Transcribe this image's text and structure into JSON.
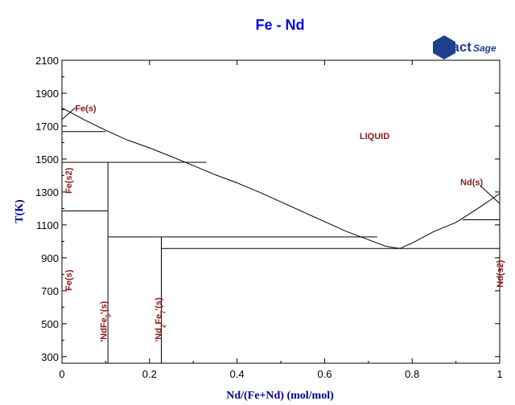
{
  "chart_data": {
    "type": "line",
    "title": "Fe - Nd",
    "xlabel": "Nd/(Fe+Nd) (mol/mol)",
    "ylabel": "T(K)",
    "xlim": [
      0,
      1
    ],
    "ylim": [
      260,
      2100
    ],
    "x_ticks": [
      0,
      0.2,
      0.4,
      0.6,
      0.8,
      1
    ],
    "x_tick_labels": [
      "0",
      "0.2",
      "0.4",
      "0.6",
      "0.8",
      "1"
    ],
    "y_ticks": [
      300,
      500,
      700,
      900,
      1100,
      1300,
      1500,
      1700,
      1900,
      2100
    ],
    "y_tick_labels": [
      "300",
      "500",
      "700",
      "900",
      "1100",
      "1300",
      "1500",
      "1700",
      "1900",
      "2100"
    ],
    "grid": false,
    "series": [
      {
        "role": "liquidus-fe-side",
        "x": [
          0,
          0.05,
          0.1,
          0.15,
          0.2,
          0.25,
          0.3,
          0.35,
          0.4,
          0.45,
          0.5,
          0.55,
          0.6,
          0.65,
          0.7,
          0.74,
          0.772
        ],
        "y": [
          1811,
          1740,
          1675,
          1615,
          1568,
          1515,
          1460,
          1405,
          1355,
          1300,
          1240,
          1180,
          1120,
          1060,
          1010,
          970,
          957
        ]
      },
      {
        "role": "liquidus-nd-side",
        "x": [
          0.772,
          0.8,
          0.85,
          0.9,
          0.95,
          1.0
        ],
        "y": [
          957,
          990,
          1060,
          1115,
          1200,
          1290
        ]
      },
      {
        "role": "fe-gamma-delta-boundary",
        "x": [
          0,
          0.0
        ],
        "y": [
          1667,
          1811
        ]
      },
      {
        "role": "fe-side-slope-upper",
        "x": [
          0,
          0.03
        ],
        "y": [
          1740,
          1811
        ]
      },
      {
        "role": "nd-side-slope",
        "x": [
          0.955,
          1.0
        ],
        "y": [
          1340,
          1230
        ]
      }
    ],
    "horizontal_lines": [
      {
        "y": 1667,
        "x": [
          0,
          0.1
        ]
      },
      {
        "y": 1480,
        "x": [
          0,
          0.33
        ]
      },
      {
        "y": 1185,
        "x": [
          0,
          0.105
        ]
      },
      {
        "y": 1027,
        "x": [
          0.105,
          0.72
        ]
      },
      {
        "y": 957,
        "x": [
          0.227,
          1.0
        ]
      },
      {
        "y": 1131,
        "x": [
          0.915,
          1.0
        ]
      }
    ],
    "vertical_lines": [
      {
        "x": 0.105,
        "y": [
          260,
          1480
        ]
      },
      {
        "x": 0.227,
        "y": [
          260,
          1027
        ]
      }
    ],
    "annotations": [
      {
        "text": "Fe(s)",
        "x": 0.03,
        "y": 1790,
        "rotate": 0,
        "color": "#8b1a1a"
      },
      {
        "text": "LIQUID",
        "x": 0.68,
        "y": 1622,
        "rotate": 0,
        "color": "#8b1a1a"
      },
      {
        "text": "Nd(s)",
        "x": 0.91,
        "y": 1340,
        "rotate": 0,
        "color": "#8b1a1a"
      },
      {
        "text": "Fe(s2)",
        "x": 0.0,
        "y": 1290,
        "rotate": -90,
        "color": "#8b1a1a"
      },
      {
        "text": "Fe(s)",
        "x": 0.0,
        "y": 700,
        "rotate": -90,
        "color": "#8b1a1a"
      },
      {
        "text": "'NdFe",
        "sub": "5",
        "tail": "'(s)",
        "x": 0.08,
        "y": 390,
        "rotate": -90,
        "color": "#8b1a1a"
      },
      {
        "text": "'Nd",
        "sub": "2",
        "tail": "Fe",
        "sub2": "7",
        "tail2": "'(s)",
        "x": 0.205,
        "y": 390,
        "rotate": -90,
        "color": "#8b1a1a"
      },
      {
        "text": "Nd(s2)",
        "x": 0.985,
        "y": 720,
        "rotate": -90,
        "color": "#8b1a1a"
      }
    ],
    "colors": {
      "title": "#0000ff",
      "axis_label": "#00008b",
      "phase_label": "#8b1a1a",
      "line": "#000000"
    }
  },
  "logo": {
    "name": "FactSage-logo",
    "text_main": "Fact",
    "text_sub": "Sage"
  }
}
